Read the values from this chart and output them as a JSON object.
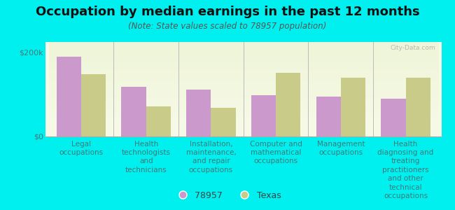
{
  "title": "Occupation by median earnings in the past 12 months",
  "subtitle": "(Note: State values scaled to 78957 population)",
  "categories": [
    "Legal\noccupations",
    "Health\ntechnologists\nand\ntechnicians",
    "Installation,\nmaintenance,\nand repair\noccupations",
    "Computer and\nmathematical\noccupations",
    "Management\noccupations",
    "Health\ndiagnosing and\ntreating\npractitioners\nand other\ntechnical\noccupations"
  ],
  "values_78957": [
    190000,
    118000,
    112000,
    98000,
    95000,
    90000
  ],
  "values_texas": [
    148000,
    72000,
    68000,
    152000,
    140000,
    140000
  ],
  "color_78957": "#cc99cc",
  "color_texas": "#c8cc88",
  "legend_78957": "78957",
  "legend_texas": "Texas",
  "ylim": [
    0,
    225000
  ],
  "yticks": [
    0,
    200000
  ],
  "ytick_labels": [
    "$0",
    "$200k"
  ],
  "background_color": "#00f0f0",
  "plot_bg_color_top": "#eef5d8",
  "plot_bg_color_bottom": "#f8fae8",
  "bar_width": 0.38,
  "title_fontsize": 13,
  "subtitle_fontsize": 8.5,
  "tick_label_fontsize": 7.5,
  "watermark": "City-Data.com"
}
